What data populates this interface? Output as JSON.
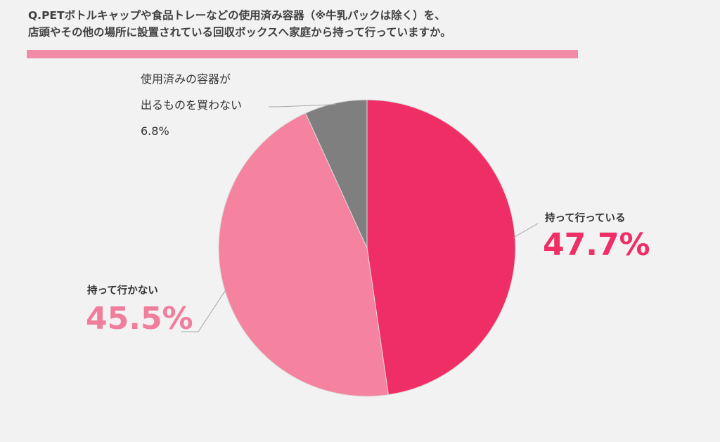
{
  "title_line1": "Q.PETボトルキャップや食品トレーなどの使用済み容器（※牛乳パックは除く）を、",
  "title_line2": "店頭やその他の場所に設置されている回収ボックスへ家庭から持って行っていますか。",
  "chart_data": {
    "type": "pie",
    "slices": [
      {
        "label": "持って行っている",
        "value": 47.7,
        "value_text": "47.7%",
        "color": "#ef2e66",
        "label_color": "#ef2e66"
      },
      {
        "label": "持って行かない",
        "value": 45.5,
        "value_text": "45.5%",
        "color": "#f5829f",
        "label_color": "#f07d9c"
      },
      {
        "label_lines": [
          "使用済みの容器が",
          "出るものを買わない"
        ],
        "value": 6.8,
        "value_text": "6.8%",
        "color": "#7f7f7f",
        "label_color": "#333333"
      }
    ],
    "start_angle_deg": 0,
    "direction": "clockwise"
  }
}
